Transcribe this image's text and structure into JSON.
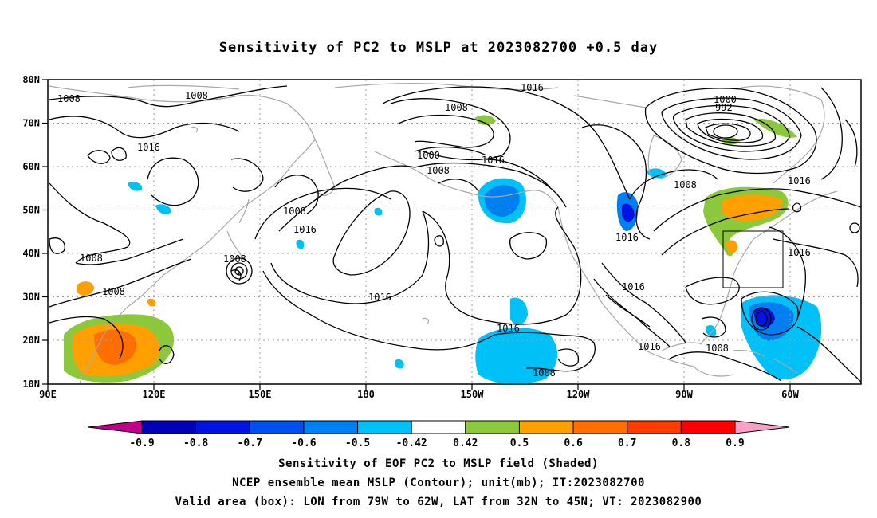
{
  "title": "Sensitivity of PC2 to MSLP at 2023082700 +0.5 day",
  "lat_labels": [
    "80N",
    "70N",
    "60N",
    "50N",
    "40N",
    "30N",
    "20N",
    "10N"
  ],
  "lon_labels": [
    "90E",
    "120E",
    "150E",
    "180",
    "150W",
    "120W",
    "90W",
    "60W"
  ],
  "contour_labels": [
    {
      "text": "1008"
    },
    {
      "text": "1008"
    },
    {
      "text": "1016"
    },
    {
      "text": "1008"
    },
    {
      "text": "1008"
    },
    {
      "text": "1008"
    },
    {
      "text": "1008"
    },
    {
      "text": "1016"
    },
    {
      "text": "1016"
    },
    {
      "text": "1000"
    },
    {
      "text": "1008"
    },
    {
      "text": "1016"
    },
    {
      "text": "1016"
    },
    {
      "text": "1016"
    },
    {
      "text": "1000"
    },
    {
      "text": "992"
    },
    {
      "text": "1008"
    },
    {
      "text": "1016"
    },
    {
      "text": "1016"
    },
    {
      "text": "1016"
    },
    {
      "text": "1016"
    },
    {
      "text": "1008"
    },
    {
      "text": "1016"
    },
    {
      "text": "1008"
    },
    {
      "text": "1008"
    }
  ],
  "colorbar": {
    "labels": [
      "-0.9",
      "-0.8",
      "-0.7",
      "-0.6",
      "-0.5",
      "-0.42",
      "0.42",
      "0.5",
      "0.6",
      "0.7",
      "0.8",
      "0.9"
    ],
    "colors": [
      "#c0008a",
      "#0000b4",
      "#0014e0",
      "#0050f0",
      "#0080f0",
      "#00c0f8",
      "#ffffff",
      "#8cc83c",
      "#ffa000",
      "#ff6e00",
      "#ff3c00",
      "#ff0000",
      "#f8a0c8"
    ]
  },
  "valid_box": {
    "lon_from": "79W",
    "lon_to": "62W",
    "lat_from": "32N",
    "lat_to": "45N"
  },
  "footer": {
    "line1": "Sensitivity of EOF PC2 to MSLP field (Shaded)",
    "line2": "NCEP ensemble mean MSLP (Contour); unit(mb); IT:2023082700",
    "line3": "Valid area (box): LON from 79W to 62W, LAT from 32N to 45N; VT: 2023082900"
  },
  "colors": {
    "contour": "#000000",
    "coast": "#a8a8a8",
    "grid": "#a0a0a0"
  }
}
